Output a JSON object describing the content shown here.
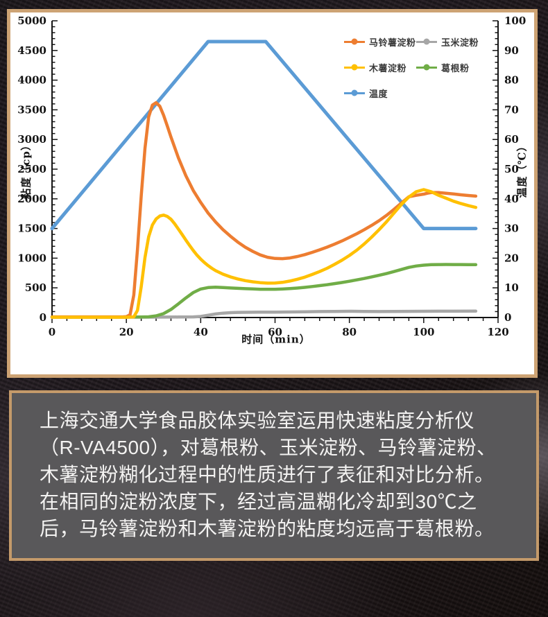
{
  "chart_data": {
    "type": "line",
    "title": "",
    "xlabel": "时间（min）",
    "ylabel_left": "粘度（cp）",
    "ylabel_right": "温度（℃）",
    "xlim": [
      0,
      120
    ],
    "ylim_left": [
      0,
      5000
    ],
    "ylim_right": [
      0,
      100
    ],
    "x_ticks": [
      0,
      20,
      40,
      60,
      80,
      100,
      120
    ],
    "y_ticks_left": [
      0,
      500,
      1000,
      1500,
      2000,
      2500,
      3000,
      3500,
      4000,
      4500,
      5000
    ],
    "y_ticks_right": [
      0,
      10,
      20,
      30,
      40,
      50,
      60,
      70,
      80,
      90,
      100
    ],
    "x_minor_step": 4,
    "y_left_minor_step": 100,
    "y_right_minor_step": 2,
    "grid": false,
    "legend_position": "top-right-inside",
    "axis_color": "#141414",
    "series": [
      {
        "key": "potato-starch",
        "name": "马铃薯淀粉",
        "color": "#ED7D31",
        "axis": "left",
        "z": 4,
        "stroke_width": 4.5,
        "points": [
          [
            0,
            10
          ],
          [
            5,
            10
          ],
          [
            10,
            10
          ],
          [
            15,
            10
          ],
          [
            19,
            10
          ],
          [
            20,
            14
          ],
          [
            21,
            45
          ],
          [
            22,
            380
          ],
          [
            23,
            1150
          ],
          [
            24,
            2050
          ],
          [
            25,
            2850
          ],
          [
            26,
            3380
          ],
          [
            27,
            3580
          ],
          [
            28,
            3620
          ],
          [
            29,
            3560
          ],
          [
            30,
            3410
          ],
          [
            31,
            3230
          ],
          [
            32,
            3040
          ],
          [
            34,
            2690
          ],
          [
            36,
            2390
          ],
          [
            38,
            2140
          ],
          [
            40,
            1940
          ],
          [
            42,
            1760
          ],
          [
            44,
            1610
          ],
          [
            46,
            1480
          ],
          [
            48,
            1370
          ],
          [
            50,
            1270
          ],
          [
            52,
            1185
          ],
          [
            54,
            1115
          ],
          [
            56,
            1055
          ],
          [
            58,
            1015
          ],
          [
            60,
            995
          ],
          [
            62,
            992
          ],
          [
            64,
            1003
          ],
          [
            66,
            1028
          ],
          [
            68,
            1060
          ],
          [
            70,
            1098
          ],
          [
            72,
            1140
          ],
          [
            74,
            1186
          ],
          [
            76,
            1236
          ],
          [
            78,
            1290
          ],
          [
            80,
            1350
          ],
          [
            82,
            1412
          ],
          [
            84,
            1480
          ],
          [
            86,
            1552
          ],
          [
            88,
            1632
          ],
          [
            90,
            1722
          ],
          [
            92,
            1822
          ],
          [
            94,
            1930
          ],
          [
            96,
            2035
          ],
          [
            98,
            2060
          ],
          [
            100,
            2080
          ],
          [
            101,
            2095
          ],
          [
            102,
            2105
          ],
          [
            104,
            2105
          ],
          [
            106,
            2095
          ],
          [
            108,
            2082
          ],
          [
            110,
            2068
          ],
          [
            112,
            2056
          ],
          [
            114,
            2045
          ]
        ]
      },
      {
        "key": "corn-starch",
        "name": "玉米淀粉",
        "color": "#A6A6A6",
        "axis": "left",
        "z": 2,
        "stroke_width": 4.5,
        "points": [
          [
            0,
            5
          ],
          [
            5,
            5
          ],
          [
            10,
            5
          ],
          [
            15,
            5
          ],
          [
            20,
            6
          ],
          [
            25,
            6
          ],
          [
            30,
            7
          ],
          [
            34,
            8
          ],
          [
            38,
            10
          ],
          [
            40,
            18
          ],
          [
            42,
            38
          ],
          [
            44,
            60
          ],
          [
            46,
            74
          ],
          [
            48,
            82
          ],
          [
            50,
            86
          ],
          [
            52,
            88
          ],
          [
            54,
            89
          ],
          [
            56,
            90
          ],
          [
            58,
            90
          ],
          [
            60,
            91
          ],
          [
            64,
            94
          ],
          [
            68,
            97
          ],
          [
            72,
            100
          ],
          [
            76,
            103
          ],
          [
            80,
            105
          ],
          [
            84,
            103
          ],
          [
            88,
            101
          ],
          [
            92,
            102
          ],
          [
            96,
            104
          ],
          [
            100,
            105
          ],
          [
            104,
            106
          ],
          [
            108,
            106
          ],
          [
            114,
            107
          ]
        ]
      },
      {
        "key": "tapioca-starch",
        "name": "木薯淀粉",
        "color": "#FFC000",
        "axis": "left",
        "z": 5,
        "stroke_width": 4.5,
        "points": [
          [
            0,
            5
          ],
          [
            5,
            5
          ],
          [
            10,
            5
          ],
          [
            15,
            5
          ],
          [
            20,
            5
          ],
          [
            22,
            10
          ],
          [
            23,
            120
          ],
          [
            24,
            520
          ],
          [
            25,
            1010
          ],
          [
            26,
            1360
          ],
          [
            27,
            1560
          ],
          [
            28,
            1660
          ],
          [
            29,
            1710
          ],
          [
            30,
            1725
          ],
          [
            31,
            1705
          ],
          [
            32,
            1655
          ],
          [
            33,
            1580
          ],
          [
            34,
            1490
          ],
          [
            35,
            1400
          ],
          [
            36,
            1305
          ],
          [
            37,
            1215
          ],
          [
            38,
            1130
          ],
          [
            39,
            1050
          ],
          [
            40,
            985
          ],
          [
            41,
            925
          ],
          [
            42,
            875
          ],
          [
            43,
            830
          ],
          [
            44,
            790
          ],
          [
            46,
            730
          ],
          [
            48,
            685
          ],
          [
            50,
            650
          ],
          [
            52,
            622
          ],
          [
            54,
            602
          ],
          [
            56,
            588
          ],
          [
            58,
            580
          ],
          [
            60,
            582
          ],
          [
            62,
            592
          ],
          [
            64,
            615
          ],
          [
            66,
            645
          ],
          [
            68,
            680
          ],
          [
            70,
            725
          ],
          [
            72,
            775
          ],
          [
            74,
            830
          ],
          [
            76,
            895
          ],
          [
            78,
            965
          ],
          [
            80,
            1045
          ],
          [
            82,
            1135
          ],
          [
            84,
            1240
          ],
          [
            86,
            1355
          ],
          [
            88,
            1480
          ],
          [
            90,
            1615
          ],
          [
            92,
            1760
          ],
          [
            94,
            1905
          ],
          [
            96,
            2030
          ],
          [
            98,
            2120
          ],
          [
            100,
            2155
          ],
          [
            102,
            2120
          ],
          [
            104,
            2060
          ],
          [
            106,
            2010
          ],
          [
            108,
            1960
          ],
          [
            110,
            1920
          ],
          [
            112,
            1885
          ],
          [
            114,
            1855
          ]
        ]
      },
      {
        "key": "kudzu-root-powder",
        "name": "葛根粉",
        "color": "#70AD47",
        "axis": "left",
        "z": 3,
        "stroke_width": 4.5,
        "points": [
          [
            0,
            8
          ],
          [
            5,
            8
          ],
          [
            10,
            8
          ],
          [
            15,
            8
          ],
          [
            20,
            8
          ],
          [
            24,
            8
          ],
          [
            26,
            12
          ],
          [
            28,
            28
          ],
          [
            30,
            65
          ],
          [
            32,
            135
          ],
          [
            34,
            230
          ],
          [
            36,
            330
          ],
          [
            38,
            420
          ],
          [
            40,
            480
          ],
          [
            42,
            505
          ],
          [
            44,
            510
          ],
          [
            46,
            505
          ],
          [
            48,
            498
          ],
          [
            50,
            492
          ],
          [
            52,
            486
          ],
          [
            54,
            481
          ],
          [
            56,
            477
          ],
          [
            58,
            475
          ],
          [
            60,
            476
          ],
          [
            62,
            480
          ],
          [
            64,
            487
          ],
          [
            66,
            497
          ],
          [
            68,
            508
          ],
          [
            70,
            522
          ],
          [
            72,
            537
          ],
          [
            74,
            553
          ],
          [
            76,
            571
          ],
          [
            78,
            590
          ],
          [
            80,
            611
          ],
          [
            82,
            634
          ],
          [
            84,
            658
          ],
          [
            86,
            684
          ],
          [
            88,
            712
          ],
          [
            90,
            742
          ],
          [
            92,
            775
          ],
          [
            94,
            810
          ],
          [
            96,
            845
          ],
          [
            98,
            868
          ],
          [
            100,
            882
          ],
          [
            102,
            890
          ],
          [
            104,
            893
          ],
          [
            106,
            894
          ],
          [
            108,
            893
          ],
          [
            110,
            892
          ],
          [
            112,
            891
          ],
          [
            114,
            890
          ]
        ]
      },
      {
        "key": "temperature",
        "name": "温度",
        "color": "#5B9BD5",
        "axis": "right",
        "z": 1,
        "stroke_width": 5,
        "points": [
          [
            0,
            30
          ],
          [
            42,
            93
          ],
          [
            57.5,
            93
          ],
          [
            100,
            30
          ],
          [
            114,
            30
          ]
        ]
      }
    ]
  },
  "caption": {
    "text": "上海交通大学食品胶体实验室运用快速粘度分析仪（R-VA4500），对葛根粉、玉米淀粉、马铃薯淀粉、木薯淀粉糊化过程中的性质进行了表征和对比分析。在相同的淀粉浓度下，经过高温糊化冷却到30℃之后，马铃薯淀粉和木薯淀粉的粘度均远高于葛根粉。"
  },
  "colors": {
    "frame_border": "#CDA374",
    "caption_border": "#C49A6A",
    "caption_background": "#59585A",
    "chart_background": "#FFFFFF",
    "caption_text": "#F4F3F2"
  }
}
